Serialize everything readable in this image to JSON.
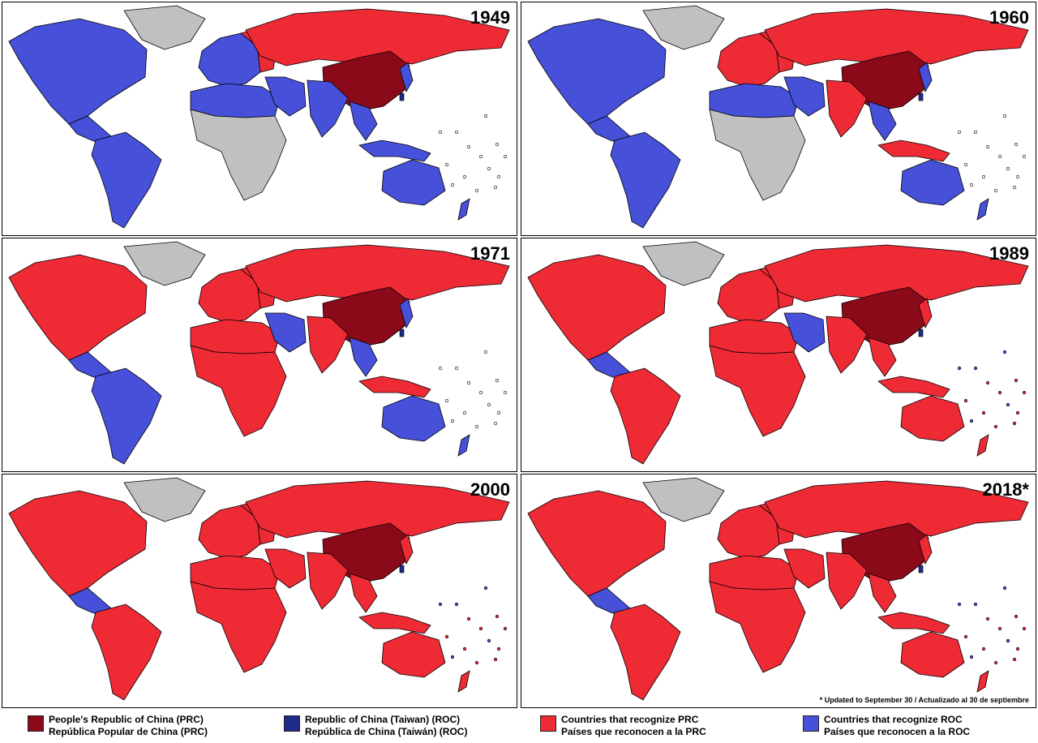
{
  "colors": {
    "prc": "#8b0a1a",
    "roc": "#1f2a8a",
    "recognize_prc": "#ee2a35",
    "recognize_roc": "#4650d8",
    "unrecognized": "#c0c0c0",
    "border": "#000000"
  },
  "panels": [
    {
      "year": "1949",
      "scheme": "y1949"
    },
    {
      "year": "1960",
      "scheme": "y1960"
    },
    {
      "year": "1971",
      "scheme": "y1971"
    },
    {
      "year": "1989",
      "scheme": "y1989"
    },
    {
      "year": "2000",
      "scheme": "y2000"
    },
    {
      "year": "2018*",
      "scheme": "y2018"
    }
  ],
  "footnote": "* Updated to September 30 / Actualizado al 30 de septiembre",
  "legend": [
    {
      "color_key": "prc",
      "line1": "People's Republic of China (PRC)",
      "line2": "República Popular de China (PRC)"
    },
    {
      "color_key": "roc",
      "line1": "Republic of China (Taiwan) (ROC)",
      "line2": "República de China (Taiwán) (ROC)"
    },
    {
      "color_key": "recognize_prc",
      "line1": "Countries that recognize PRC",
      "line2": "Países que reconocen a la PRC"
    },
    {
      "color_key": "recognize_roc",
      "line1": "Countries that recognize ROC",
      "line2": "Países que reconocen a la ROC"
    }
  ],
  "region_colors": {
    "y1949": {
      "greenland": "u",
      "northam": "roc",
      "centam": "roc",
      "southam": "roc",
      "europe_w": "roc",
      "europe_e": "prc_r",
      "russia": "prc_r",
      "china": "prc",
      "africa": "u",
      "africa_n": "roc",
      "mideast": "roc",
      "india": "roc",
      "seasia": "roc",
      "indonesia": "roc",
      "australia": "roc",
      "japan": "roc",
      "nz": "roc"
    },
    "y1960": {
      "greenland": "u",
      "northam": "roc",
      "centam": "roc",
      "southam": "roc",
      "europe_w": "prc_r",
      "europe_e": "prc_r",
      "russia": "prc_r",
      "china": "prc",
      "africa": "u",
      "africa_n": "roc",
      "mideast": "roc",
      "india": "prc_r",
      "seasia": "roc",
      "indonesia": "prc_r",
      "australia": "roc",
      "japan": "roc",
      "nz": "roc"
    },
    "y1971": {
      "greenland": "u",
      "northam": "prc_r",
      "centam": "roc",
      "southam": "roc",
      "europe_w": "prc_r",
      "europe_e": "prc_r",
      "russia": "prc_r",
      "china": "prc",
      "africa": "prc_r",
      "africa_n": "prc_r",
      "mideast": "roc",
      "india": "prc_r",
      "seasia": "roc",
      "indonesia": "prc_r",
      "australia": "roc",
      "japan": "roc",
      "nz": "roc"
    },
    "y1989": {
      "greenland": "u",
      "northam": "prc_r",
      "centam": "roc",
      "southam": "prc_r",
      "europe_w": "prc_r",
      "europe_e": "prc_r",
      "russia": "prc_r",
      "china": "prc",
      "africa": "prc_r",
      "africa_n": "prc_r",
      "mideast": "roc",
      "india": "prc_r",
      "seasia": "prc_r",
      "indonesia": "prc_r",
      "australia": "prc_r",
      "japan": "prc_r",
      "nz": "prc_r"
    },
    "y2000": {
      "greenland": "u",
      "northam": "prc_r",
      "centam": "roc",
      "southam": "prc_r",
      "europe_w": "prc_r",
      "europe_e": "prc_r",
      "russia": "prc_r",
      "china": "prc",
      "africa": "prc_r",
      "africa_n": "prc_r",
      "mideast": "prc_r",
      "india": "prc_r",
      "seasia": "prc_r",
      "indonesia": "prc_r",
      "australia": "prc_r",
      "japan": "prc_r",
      "nz": "prc_r"
    },
    "y2018": {
      "greenland": "u",
      "northam": "prc_r",
      "centam": "roc",
      "southam": "prc_r",
      "europe_w": "prc_r",
      "europe_e": "prc_r",
      "russia": "prc_r",
      "china": "prc",
      "africa": "prc_r",
      "africa_n": "prc_r",
      "mideast": "prc_r",
      "india": "prc_r",
      "seasia": "prc_r",
      "indonesia": "prc_r",
      "australia": "prc_r",
      "japan": "prc_r",
      "nz": "prc_r"
    }
  }
}
